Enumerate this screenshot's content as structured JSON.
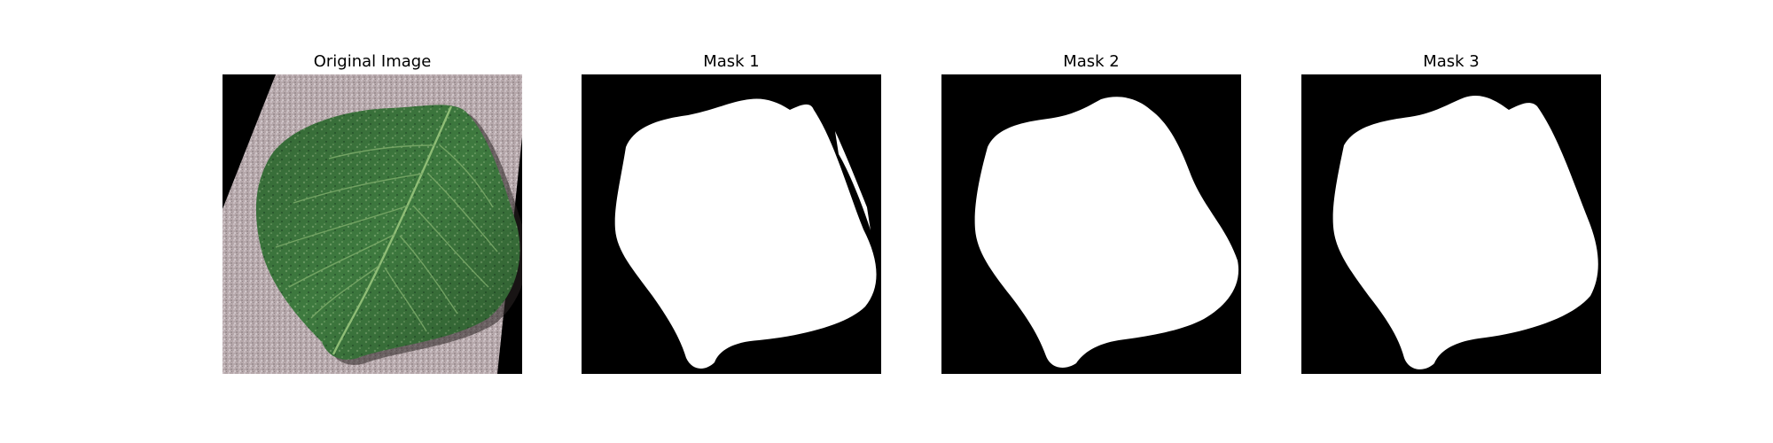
{
  "figure": {
    "panels": [
      {
        "title": "Original Image",
        "kind": "photo",
        "subject": "leaf-photo"
      },
      {
        "title": "Mask 1",
        "kind": "mask"
      },
      {
        "title": "Mask 2",
        "kind": "mask"
      },
      {
        "title": "Mask 3",
        "kind": "mask"
      }
    ]
  },
  "colors": {
    "background": "#000000",
    "mask_fill": "#ffffff",
    "leaf_green": "#3f7a3d",
    "paper": "#b7a9ab"
  }
}
